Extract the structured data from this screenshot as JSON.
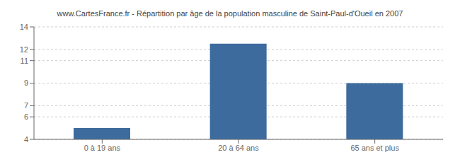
{
  "chart_data": {
    "type": "bar",
    "title": "www.CartesFrance.fr - Répartition par âge de la population masculine de Saint-Paul-d'Oueil en 2007",
    "categories": [
      "0 à 19 ans",
      "20 à 64 ans",
      "65 ans et plus"
    ],
    "values": [
      5,
      12.5,
      9
    ],
    "color": "#3d6b9e",
    "ylim": [
      4,
      14
    ],
    "yticks": [
      4,
      6,
      7,
      9,
      11,
      12,
      14
    ],
    "grid": true
  }
}
